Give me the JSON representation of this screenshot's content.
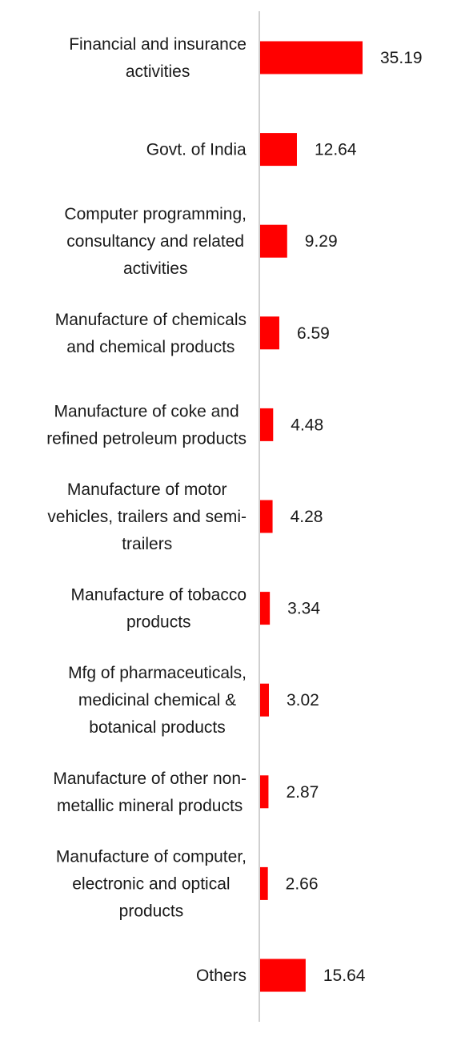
{
  "chart_data": {
    "type": "bar",
    "orientation": "horizontal",
    "categories": [
      [
        "Financial and insurance",
        "activities"
      ],
      [
        "Govt. of India"
      ],
      [
        "Computer programming,",
        "consultancy and related",
        "activities"
      ],
      [
        "Manufacture of chemicals",
        "and chemical products"
      ],
      [
        "Manufacture of coke and",
        "refined petroleum products"
      ],
      [
        "Manufacture of motor",
        "vehicles, trailers and semi-",
        "trailers"
      ],
      [
        "Manufacture of tobacco",
        "products"
      ],
      [
        "Mfg of pharmaceuticals,",
        "medicinal chemical &",
        "botanical products"
      ],
      [
        "Manufacture of other non-",
        "metallic mineral products"
      ],
      [
        "Manufacture of computer,",
        "electronic and optical",
        "products"
      ],
      [
        "Others"
      ]
    ],
    "values": [
      35.19,
      12.64,
      9.29,
      6.59,
      4.48,
      4.28,
      3.34,
      3.02,
      2.87,
      2.66,
      15.64
    ],
    "value_labels": [
      "35.19",
      "12.64",
      "9.29",
      "6.59",
      "4.48",
      "4.28",
      "3.34",
      "3.02",
      "2.87",
      "2.66",
      "15.64"
    ],
    "bar_color": "#ff0000",
    "axis_color": "#d0d0d0",
    "xlim": [
      0,
      35.19
    ],
    "grid": false,
    "legend": "none"
  }
}
